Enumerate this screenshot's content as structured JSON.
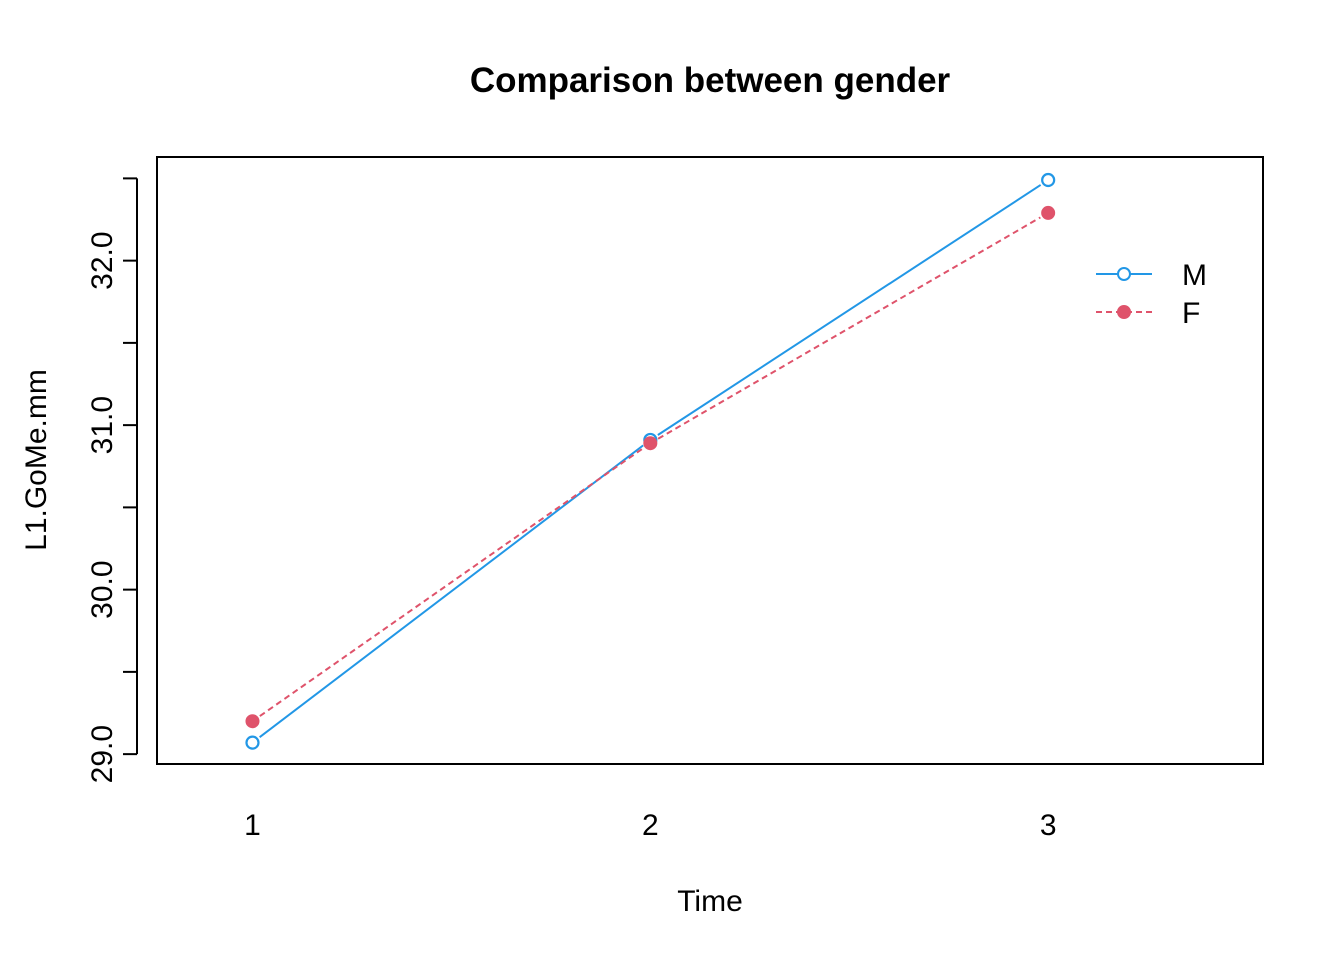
{
  "chart_data": {
    "type": "line",
    "title": "Comparison between gender",
    "xlabel": "Time",
    "ylabel": "L1.GoMe.mm",
    "x": [
      1,
      2,
      3
    ],
    "x_ticks": [
      "1",
      "2",
      "3"
    ],
    "y_ticks": [
      "29.0",
      "30.0",
      "31.0",
      "32.0"
    ],
    "xlim": [
      0.76,
      3.54
    ],
    "ylim": [
      28.94,
      32.63
    ],
    "grid": false,
    "legend_position": "top-right",
    "series": [
      {
        "name": "M",
        "values": [
          29.07,
          30.91,
          32.49
        ],
        "color": "#2297E6",
        "line_style": "solid",
        "marker": "open-circle"
      },
      {
        "name": "F",
        "values": [
          29.2,
          30.89,
          32.29
        ],
        "color": "#DF536B",
        "line_style": "dashed",
        "marker": "filled-circle"
      }
    ]
  }
}
